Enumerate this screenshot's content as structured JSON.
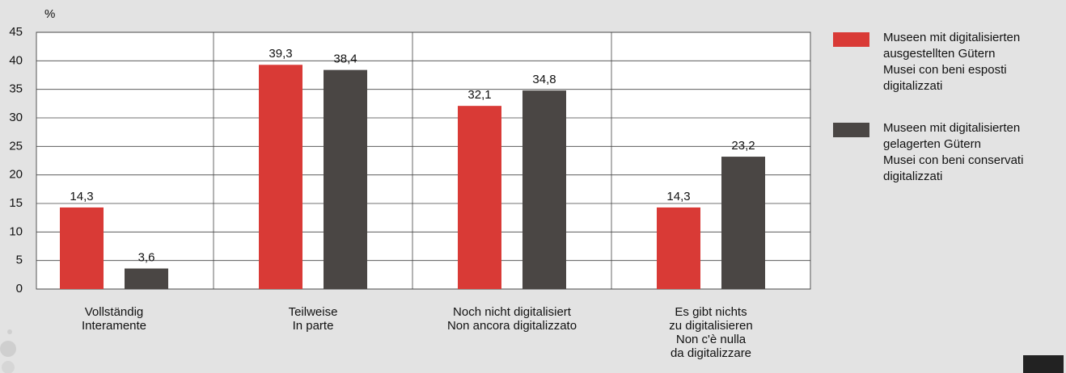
{
  "chart_data": {
    "type": "bar",
    "y_unit": "%",
    "categories": [
      [
        "Vollständig",
        "Interamente"
      ],
      [
        "Teilweise",
        "In parte"
      ],
      [
        "Noch nicht digitalisiert",
        "Non ancora digitalizzato"
      ],
      [
        "Es gibt nichts",
        "zu digitalisieren",
        "Non c'è nulla",
        "da digitalizzare"
      ]
    ],
    "series": [
      {
        "name": [
          "Museen mit digitalisierten",
          "ausgestellten Gütern",
          "Musei con beni esposti",
          "digitalizzati"
        ],
        "color": "#d93a36",
        "values": [
          14.3,
          39.3,
          32.1,
          14.3
        ],
        "value_labels": [
          "14,3",
          "39,3",
          "32,1",
          "14,3"
        ]
      },
      {
        "name": [
          "Museen mit digitalisierten",
          "gelagerten Gütern",
          "Musei con beni conservati",
          "digitalizzati"
        ],
        "color": "#4a4644",
        "values": [
          3.6,
          38.4,
          34.8,
          23.2
        ],
        "value_labels": [
          "3,6",
          "38,4",
          "34,8",
          "23,2"
        ]
      }
    ],
    "ylim": [
      0,
      45
    ],
    "yticks": [
      0,
      5,
      10,
      15,
      20,
      25,
      30,
      35,
      40,
      45
    ],
    "grid": true,
    "legend": "right"
  }
}
